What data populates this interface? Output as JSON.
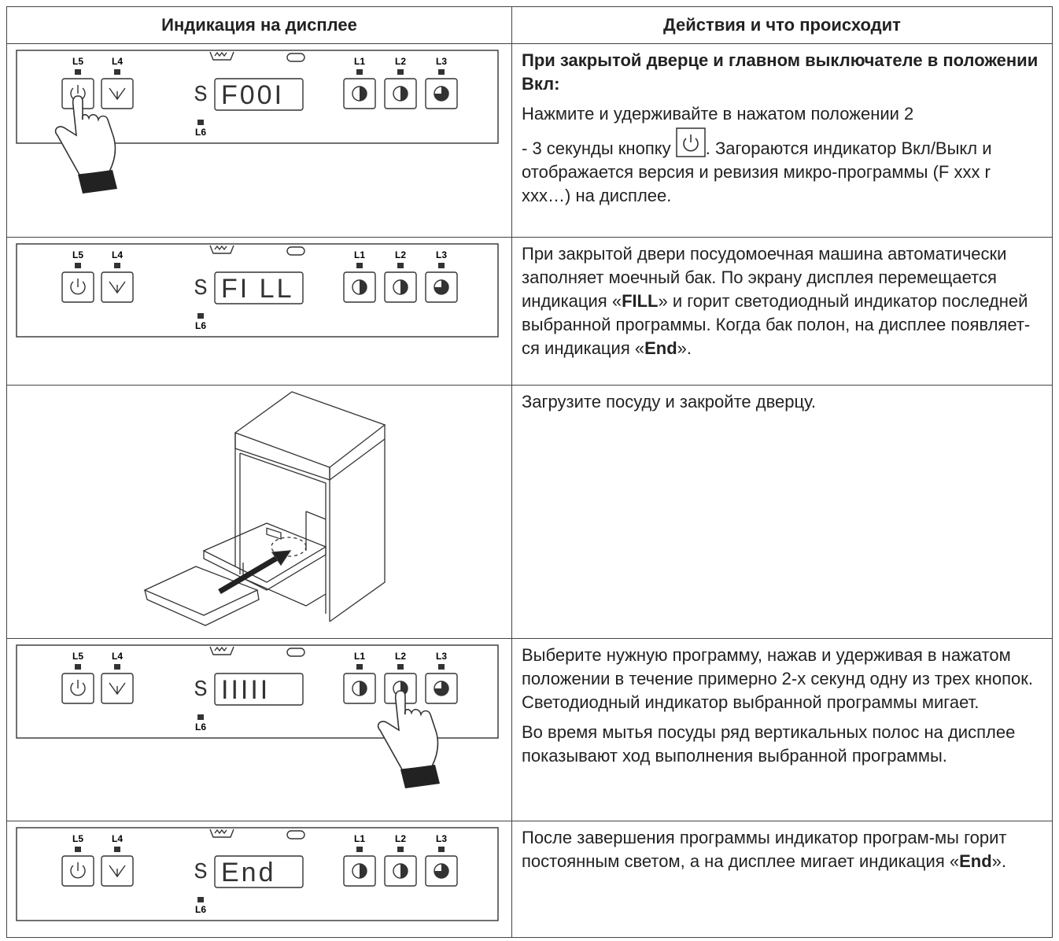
{
  "header": [
    "Индикация на дисплее",
    "Действия и что происходит"
  ],
  "rows": [
    {
      "panel": {
        "labels": [
          "L5",
          "L4",
          "L1",
          "L2",
          "L3",
          "L6"
        ],
        "display": "F00I"
      },
      "text": [
        "При закрытой дверце и главном выключателе в положении Вкл:",
        "Нажмите и удерживайте в нажатом положении 2",
        "- 3 секунды кнопку",
        ". Загораются индикатор Вкл/Выкл и отображается версия и ревизия микро-программы (F xxx r xxx…) на дисплее."
      ]
    },
    {
      "panel": {
        "labels": [
          "L5",
          "L4",
          "L1",
          "L2",
          "L3",
          "L6"
        ],
        "display": "FI LL"
      },
      "text": [
        "При закрытой двери посудомоечная машина автоматически заполняет моечный бак. По экрану дисплея перемещается индикация «",
        "FILL",
        "» и горит светодиодный индикатор последней выбранной программы. Когда бак полон, на дисплее появляет-ся индикация «",
        "End",
        "»."
      ]
    },
    {
      "text": [
        "Загрузите посуду и закройте дверцу."
      ]
    },
    {
      "panel": {
        "labels": [
          "L5",
          "L4",
          "L1",
          "L2",
          "L3",
          "L6"
        ],
        "display": "IIIII"
      },
      "text": [
        "Выберите нужную программу, нажав и удерживая в нажатом положении в течение примерно 2-х секунд одну из трех кнопок. Светодиодный индикатор выбранной программы мигает.",
        "Во время мытья посуды ряд вертикальных полос на дисплее показывают ход выполнения выбранной программы."
      ]
    },
    {
      "panel": {
        "labels": [
          "L5",
          "L4",
          "L1",
          "L2",
          "L3",
          "L6"
        ],
        "display": "End"
      },
      "text": [
        "После завершения программы индикатор програм-мы горит постоянным светом, а на дисплее мигает индикация «",
        "End",
        "»."
      ]
    }
  ]
}
